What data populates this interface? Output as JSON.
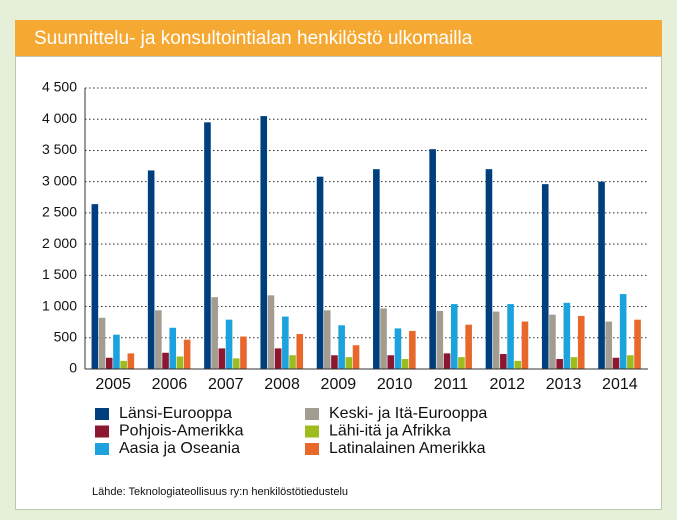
{
  "chart_data": {
    "type": "bar",
    "title": "Suunnittelu- ja konsultointialan henkilöstö ulkomailla",
    "source": "Lähde: Teknologiateollisuus ry:n henkilöstötiedustelu",
    "categories": [
      "2005",
      "2006",
      "2007",
      "2008",
      "2009",
      "2010",
      "2011",
      "2012",
      "2013",
      "2014"
    ],
    "series": [
      {
        "name": "Länsi-Eurooppa",
        "color": "#003f7d",
        "values": [
          2640,
          3180,
          3950,
          4050,
          3080,
          3200,
          3520,
          3200,
          2960,
          3000
        ]
      },
      {
        "name": "Keski- ja Itä-Eurooppa",
        "color": "#a39d91",
        "values": [
          820,
          940,
          1150,
          1180,
          940,
          970,
          930,
          920,
          870,
          760
        ]
      },
      {
        "name": "Pohjois-Amerikka",
        "color": "#8c1730",
        "values": [
          180,
          260,
          330,
          330,
          220,
          220,
          250,
          240,
          160,
          180
        ]
      },
      {
        "name": "Aasia ja Oseania",
        "color": "#1ca3de",
        "values": [
          550,
          660,
          790,
          840,
          700,
          650,
          1040,
          1040,
          1060,
          1200
        ]
      },
      {
        "name": "Lähi-itä ja Afrikka",
        "color": "#9dbd1e",
        "values": [
          130,
          200,
          170,
          220,
          190,
          160,
          190,
          130,
          190,
          220
        ]
      },
      {
        "name": "Latinalainen Amerikka",
        "color": "#e8682c",
        "values": [
          250,
          470,
          520,
          560,
          380,
          610,
          710,
          760,
          850,
          790
        ]
      }
    ],
    "ylim": [
      0,
      4500
    ],
    "yticks": [
      0,
      500,
      {
        "value": 1000,
        "label": "1 000"
      },
      {
        "value": 1500,
        "label": "1 500"
      },
      {
        "value": 2000,
        "label": "2 000"
      },
      {
        "value": 2500,
        "label": "2 500"
      },
      {
        "value": 3000,
        "label": "3 000"
      },
      {
        "value": 3500,
        "label": "3 500"
      },
      {
        "value": 4000,
        "label": "4 000"
      },
      {
        "value": 4500,
        "label": "4 500"
      }
    ],
    "grid": true
  }
}
